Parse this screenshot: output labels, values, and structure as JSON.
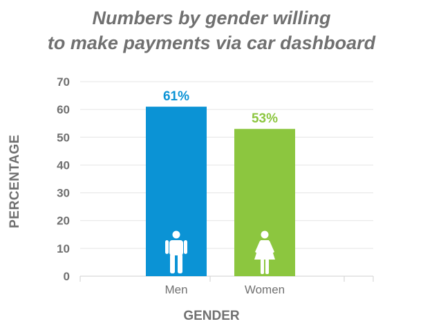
{
  "chart_data": {
    "type": "bar",
    "title_lines": [
      "Numbers by gender willing",
      "to make payments via car dashboard"
    ],
    "xlabel": "GENDER",
    "ylabel": "PERCENTAGE",
    "categories": [
      "Men",
      "Women"
    ],
    "values": [
      61,
      53
    ],
    "data_labels": [
      "61%",
      "53%"
    ],
    "ylim": [
      0,
      70
    ],
    "yticks": [
      0,
      10,
      20,
      30,
      40,
      50,
      60,
      70
    ],
    "grid": true,
    "legend": "none",
    "colors": [
      "#0b93d5",
      "#8cc63f"
    ],
    "icons": [
      "man-icon",
      "woman-icon"
    ],
    "text_color": "#707070"
  }
}
